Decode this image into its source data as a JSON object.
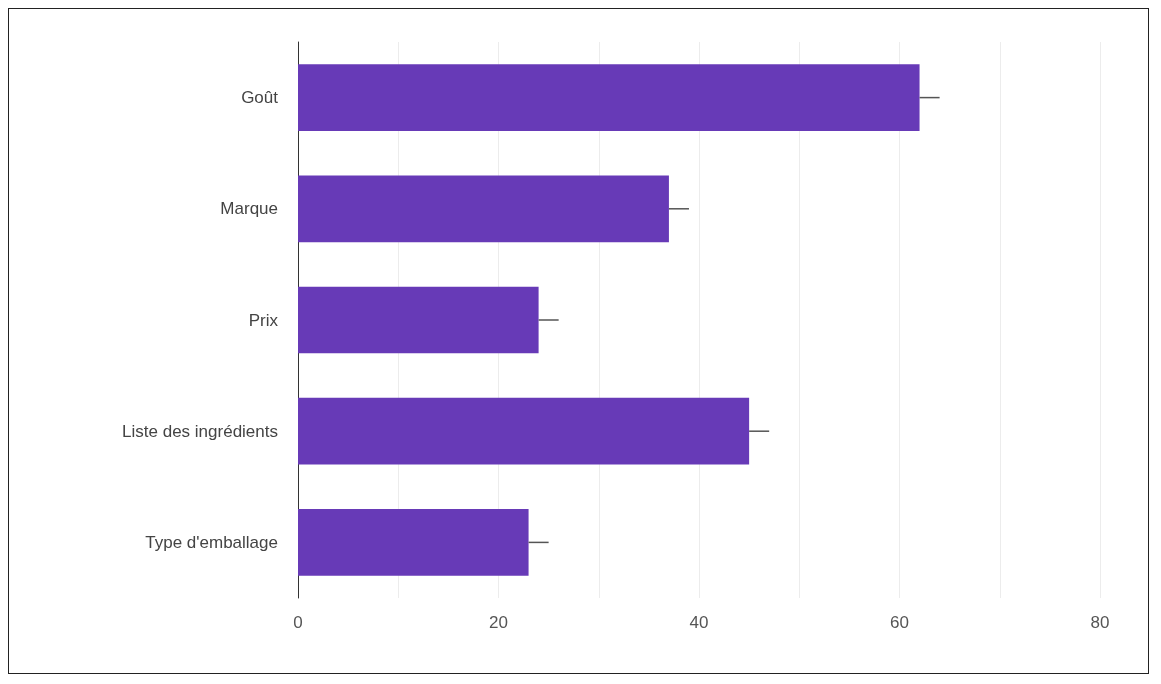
{
  "chart_data": {
    "type": "bar",
    "orientation": "horizontal",
    "categories": [
      "Goût",
      "Marque",
      "Prix",
      "Liste des ingrédients",
      "Type d'emballage"
    ],
    "values": [
      62,
      37,
      24,
      45,
      23
    ],
    "errors": [
      [
        62,
        64
      ],
      [
        37,
        39
      ],
      [
        24,
        26
      ],
      [
        45,
        47
      ],
      [
        23,
        25
      ]
    ],
    "color": "#673ab7",
    "xlim": [
      0,
      80
    ],
    "xticks": [
      0,
      {
        "value": 10,
        "label": null
      },
      20,
      {
        "value": 30,
        "label": null
      },
      40,
      {
        "value": 50,
        "label": null
      },
      60,
      {
        "value": 70,
        "label": null
      },
      80
    ],
    "grid": "x"
  }
}
